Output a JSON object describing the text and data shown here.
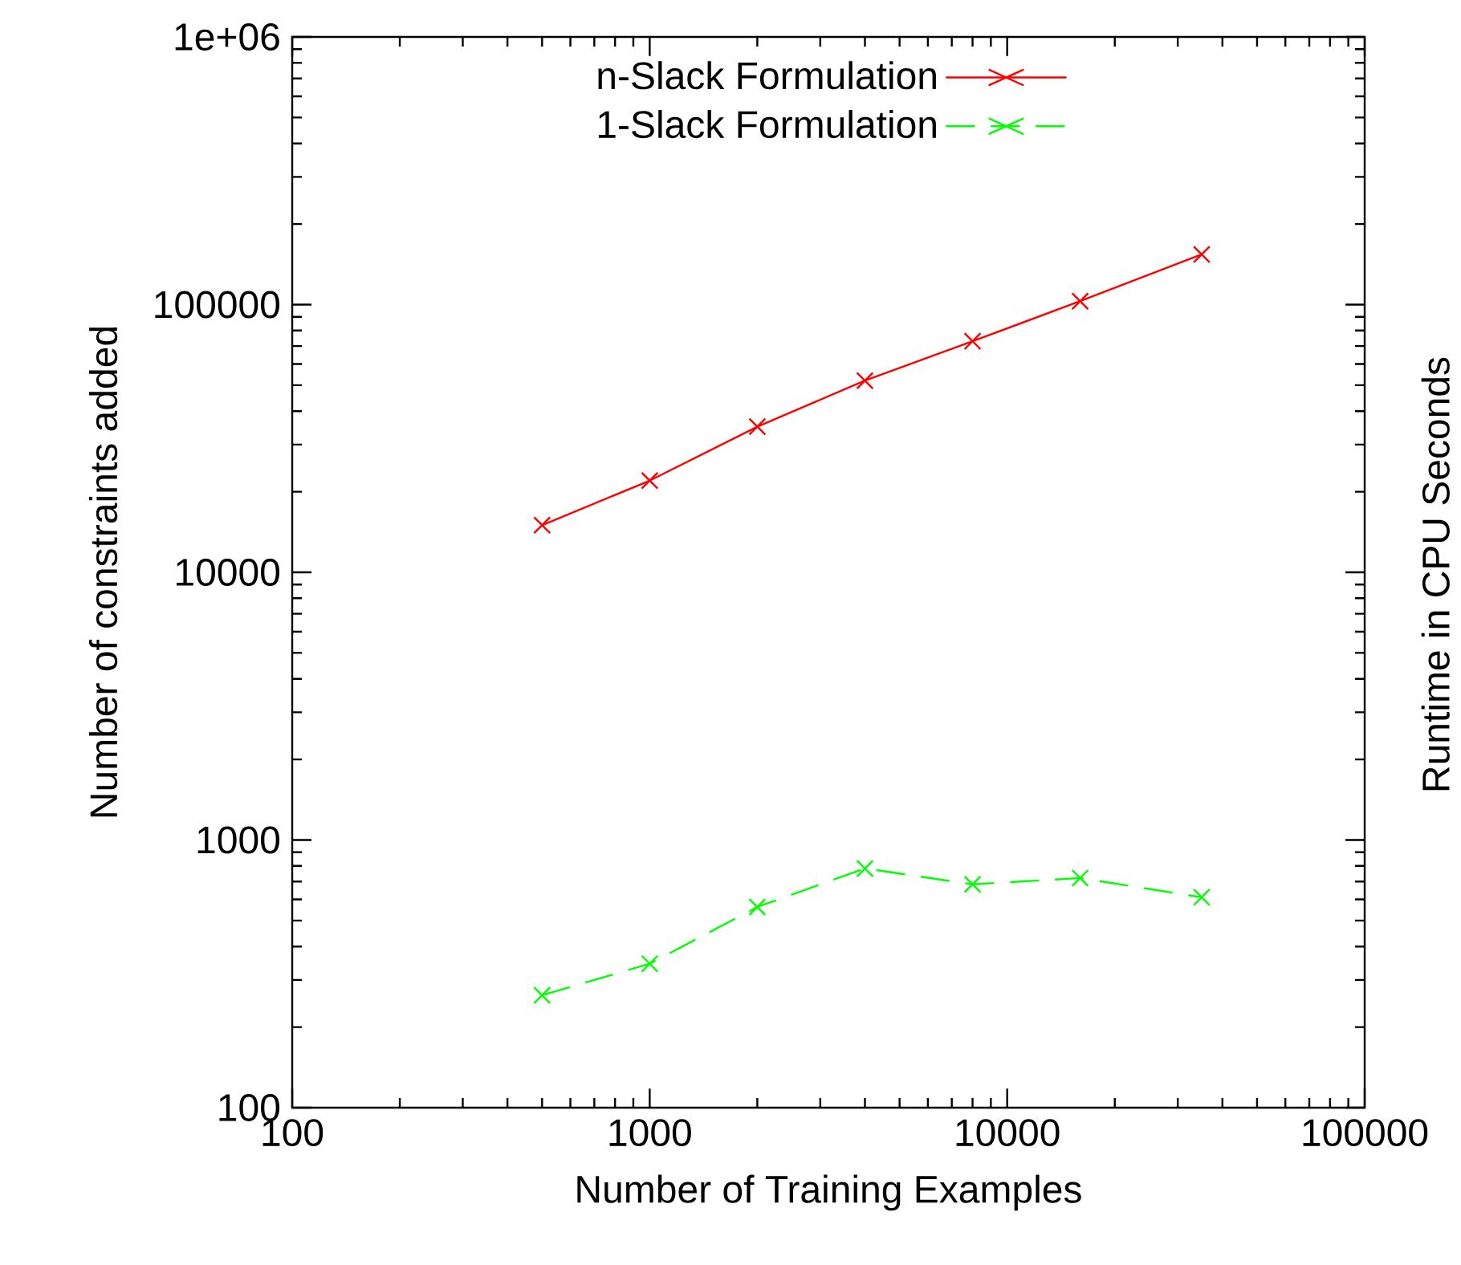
{
  "chart_data": {
    "type": "line",
    "xlabel": "Number of Training Examples",
    "ylabel": "Number of constraints added",
    "y2label": "Runtime in CPU Seconds",
    "log": "xy",
    "xlim": [
      100,
      100000
    ],
    "ylim": [
      100,
      1000000
    ],
    "xticks": [
      100,
      1000,
      10000,
      100000
    ],
    "yticks": [
      100,
      1000,
      10000,
      100000,
      {
        "value": 1000000,
        "label": "1e+06"
      }
    ],
    "grid": false,
    "legend": "top",
    "marker": "cross",
    "series": [
      {
        "name": "n-Slack Formulation",
        "color": "#ff0000",
        "line_style": "solid",
        "x": [
          500,
          1000,
          2000,
          4000,
          8000,
          16000,
          35000
        ],
        "values": [
          15000,
          22000,
          35000,
          52000,
          73000,
          103000,
          154000
        ]
      },
      {
        "name": "1-Slack Formulation",
        "color": "#00ff00",
        "line_style": "dashed",
        "x": [
          500,
          1000,
          2000,
          4000,
          8000,
          16000,
          35000
        ],
        "values": [
          263,
          345,
          562,
          783,
          683,
          721,
          611
        ]
      }
    ]
  }
}
